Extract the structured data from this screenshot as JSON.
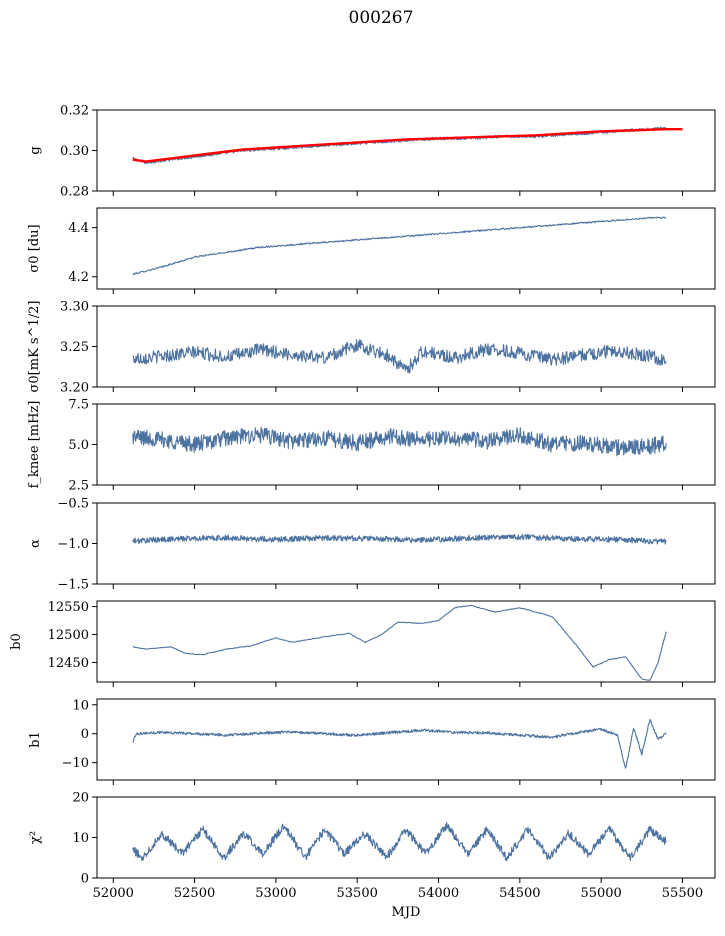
{
  "figure_title": "000267",
  "colors": {
    "series": "#4c72a0",
    "fit": "#ff0000",
    "axis": "#000000"
  },
  "chart_data": [
    {
      "type": "line",
      "ylabel": "g",
      "ylim": [
        0.28,
        0.32
      ],
      "yticks": [
        0.28,
        0.3,
        0.32
      ],
      "ytick_labels": [
        "0.28",
        "0.30",
        "0.32"
      ],
      "series": [
        {
          "name": "g",
          "x": [
            52120,
            52200,
            52400,
            52600,
            52800,
            53000,
            53200,
            53400,
            53600,
            53800,
            54000,
            54200,
            54400,
            54600,
            54800,
            55000,
            55200,
            55400
          ],
          "values": [
            0.296,
            0.294,
            0.296,
            0.298,
            0.3,
            0.301,
            0.302,
            0.303,
            0.304,
            0.305,
            0.306,
            0.306,
            0.307,
            0.307,
            0.308,
            0.309,
            0.31,
            0.311
          ]
        },
        {
          "name": "fit",
          "x": [
            52120,
            52200,
            52400,
            52600,
            52800,
            53000,
            53200,
            53400,
            53600,
            53800,
            54000,
            54200,
            54400,
            54600,
            54800,
            55000,
            55200,
            55400,
            55500
          ],
          "values": [
            0.2955,
            0.2945,
            0.2965,
            0.2985,
            0.3005,
            0.3015,
            0.3025,
            0.3035,
            0.3045,
            0.3055,
            0.306,
            0.3065,
            0.307,
            0.3075,
            0.3085,
            0.3095,
            0.31,
            0.3105,
            0.3105
          ]
        }
      ]
    },
    {
      "type": "line",
      "ylabel": "σ0 [du]",
      "ylim": [
        4.15,
        4.48
      ],
      "yticks": [
        4.2,
        4.4
      ],
      "ytick_labels": [
        "4.2",
        "4.4"
      ],
      "series": [
        {
          "name": "sigma0_du",
          "x": [
            52120,
            52300,
            52500,
            52700,
            52900,
            53100,
            53300,
            53500,
            53700,
            53900,
            54100,
            54300,
            54500,
            54700,
            54900,
            55100,
            55300,
            55400
          ],
          "values": [
            4.21,
            4.24,
            4.28,
            4.3,
            4.32,
            4.33,
            4.34,
            4.35,
            4.36,
            4.37,
            4.38,
            4.39,
            4.4,
            4.41,
            4.42,
            4.43,
            4.44,
            4.44
          ]
        }
      ]
    },
    {
      "type": "line",
      "ylabel": "σ0[mK s^1/2]",
      "ylim": [
        3.2,
        3.3
      ],
      "yticks": [
        3.2,
        3.25,
        3.3
      ],
      "ytick_labels": [
        "3.20",
        "3.25",
        "3.30"
      ],
      "series": [
        {
          "name": "sigma0_mK",
          "x": [
            52120,
            52300,
            52500,
            52700,
            52900,
            53100,
            53300,
            53500,
            53700,
            53800,
            53900,
            54100,
            54300,
            54500,
            54700,
            54900,
            55100,
            55300,
            55400
          ],
          "values": [
            3.235,
            3.238,
            3.243,
            3.237,
            3.246,
            3.24,
            3.236,
            3.252,
            3.238,
            3.22,
            3.244,
            3.236,
            3.247,
            3.242,
            3.233,
            3.24,
            3.245,
            3.238,
            3.232
          ]
        }
      ]
    },
    {
      "type": "line",
      "ylabel": "f_knee [mHz]",
      "ylim": [
        2.5,
        7.5
      ],
      "yticks": [
        2.5,
        5.0,
        7.5
      ],
      "ytick_labels": [
        "2.5",
        "5.0",
        "7.5"
      ],
      "series": [
        {
          "name": "fknee",
          "x": [
            52120,
            52300,
            52500,
            52700,
            52900,
            53100,
            53300,
            53500,
            53700,
            53900,
            54100,
            54300,
            54500,
            54700,
            54900,
            55100,
            55300,
            55400
          ],
          "values": [
            5.5,
            5.3,
            5.0,
            5.4,
            5.6,
            5.2,
            5.4,
            5.1,
            5.5,
            5.3,
            5.4,
            5.2,
            5.6,
            5.0,
            5.1,
            4.8,
            4.9,
            5.1
          ]
        }
      ]
    },
    {
      "type": "line",
      "ylabel": "α",
      "ylim": [
        -1.5,
        -0.5
      ],
      "yticks": [
        -1.5,
        -1.0,
        -0.5
      ],
      "ytick_labels": [
        "−1.5",
        "−1.0",
        "−0.5"
      ],
      "series": [
        {
          "name": "alpha",
          "x": [
            52120,
            52400,
            52700,
            53000,
            53300,
            53600,
            53900,
            54200,
            54500,
            54800,
            55100,
            55400
          ],
          "values": [
            -0.97,
            -0.94,
            -0.93,
            -0.95,
            -0.93,
            -0.94,
            -0.96,
            -0.93,
            -0.92,
            -0.94,
            -0.95,
            -0.98
          ]
        }
      ]
    },
    {
      "type": "line",
      "ylabel": "b0",
      "ylim": [
        12415,
        12560
      ],
      "yticks": [
        12450,
        12500,
        12550
      ],
      "ytick_labels": [
        "12450",
        "12500",
        "12550"
      ],
      "series": [
        {
          "name": "b0",
          "x": [
            52120,
            52200,
            52350,
            52450,
            52550,
            52700,
            52850,
            53000,
            53100,
            53300,
            53450,
            53550,
            53650,
            53750,
            53900,
            54000,
            54100,
            54200,
            54350,
            54500,
            54700,
            54850,
            54950,
            55050,
            55150,
            55200,
            55250,
            55300,
            55350,
            55400
          ],
          "values": [
            12478,
            12474,
            12478,
            12466,
            12464,
            12474,
            12480,
            12494,
            12486,
            12496,
            12502,
            12486,
            12500,
            12522,
            12520,
            12525,
            12548,
            12552,
            12540,
            12548,
            12532,
            12480,
            12442,
            12455,
            12460,
            12440,
            12420,
            12418,
            12450,
            12505
          ]
        }
      ]
    },
    {
      "type": "line",
      "ylabel": "b1",
      "ylim": [
        -16,
        12
      ],
      "yticks": [
        -10,
        0,
        10
      ],
      "ytick_labels": [
        "−10",
        "0",
        "10"
      ],
      "series": [
        {
          "name": "b1",
          "x": [
            52120,
            52140,
            52300,
            52500,
            52700,
            52900,
            53100,
            53300,
            53500,
            53700,
            53900,
            54100,
            54300,
            54500,
            54700,
            54900,
            55000,
            55100,
            55150,
            55200,
            55250,
            55300,
            55350,
            55400
          ],
          "values": [
            -3,
            0,
            0.5,
            0,
            -0.5,
            0.2,
            0.6,
            0,
            -0.6,
            0.4,
            1.2,
            0.5,
            0.3,
            -0.5,
            -1.2,
            0.8,
            1.5,
            -0.5,
            -12,
            2,
            -7,
            5,
            -2,
            0
          ]
        }
      ]
    },
    {
      "type": "line",
      "ylabel": "χ²",
      "ylim": [
        0,
        20
      ],
      "yticks": [
        0,
        10,
        20
      ],
      "ytick_labels": [
        "0",
        "10",
        "20"
      ],
      "xlabel": "MJD",
      "xlim": [
        51900,
        55700
      ],
      "xticks": [
        52000,
        52500,
        53000,
        53500,
        54000,
        54500,
        55000,
        55500
      ],
      "xtick_labels": [
        "52000",
        "52500",
        "53000",
        "53500",
        "54000",
        "54500",
        "55000",
        "55500"
      ],
      "series": [
        {
          "name": "chi2",
          "x": [
            52120,
            52180,
            52300,
            52420,
            52550,
            52680,
            52800,
            52920,
            53050,
            53180,
            53300,
            53420,
            53550,
            53680,
            53800,
            53920,
            54050,
            54180,
            54300,
            54420,
            54550,
            54680,
            54800,
            54920,
            55050,
            55180,
            55300,
            55400
          ],
          "values": [
            7,
            5,
            11,
            6,
            12,
            5,
            11,
            6,
            13,
            5,
            12,
            6,
            11,
            5,
            12,
            6,
            13,
            6,
            12,
            5,
            12,
            5,
            11,
            6,
            12,
            5,
            12,
            9
          ]
        }
      ]
    }
  ]
}
